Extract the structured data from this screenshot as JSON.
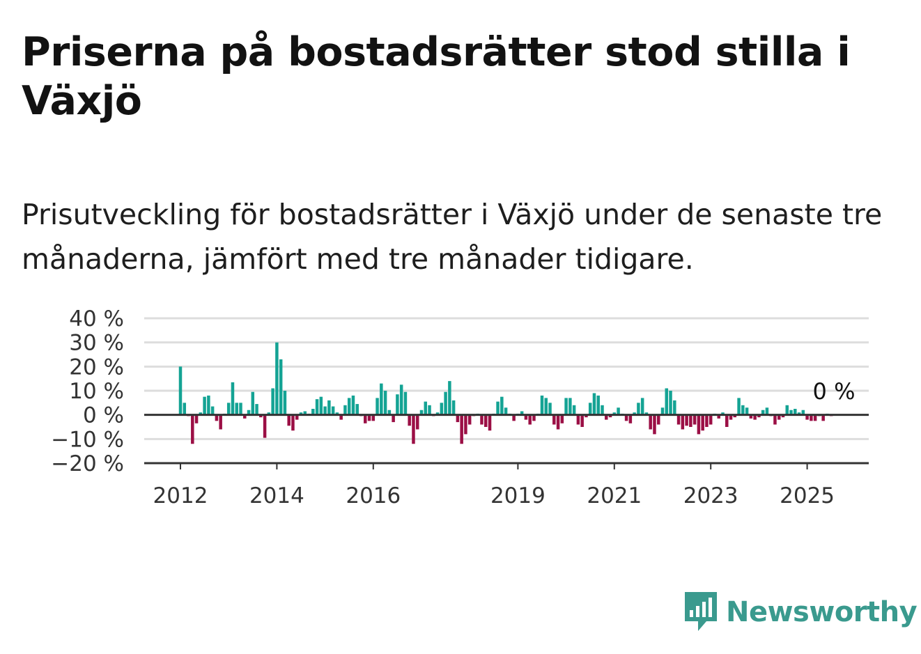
{
  "title": "Priserna på bostadsrätter stod stilla i Växjö",
  "subtitle": "Prisutveckling för bostadsrätter i Växjö under de senaste tre månaderna, jämfört med tre månader tidigare.",
  "brand": {
    "name": "Newsworthy",
    "color": "#3a9a8e",
    "icon": "newsworthy-logo-icon"
  },
  "colors": {
    "positive": "#14a394",
    "negative": "#9b0f45",
    "grid": "#dddddd",
    "axis": "#333333"
  },
  "chart_data": {
    "type": "bar",
    "ylim": [
      -20,
      40
    ],
    "yticks": [
      40,
      30,
      20,
      10,
      0,
      -10,
      -20
    ],
    "ytick_labels": [
      "40 %",
      "30 %",
      "20 %",
      "10 %",
      "0 %",
      "−10 %",
      "−20 %"
    ],
    "xticks": [
      2012,
      2014,
      2016,
      2019,
      2021,
      2023,
      2025
    ],
    "xtick_labels": [
      "2012",
      "2014",
      "2016",
      "2019",
      "2021",
      "2023",
      "2025"
    ],
    "grid": true,
    "unit": "%",
    "annotation": "0 %",
    "start": "2012-01",
    "frequency": "monthly",
    "values": [
      20,
      5,
      -0.5,
      -12,
      -3.5,
      1,
      7.5,
      8,
      3.5,
      -2.5,
      -6,
      0.5,
      5,
      13.5,
      5,
      5,
      -1.5,
      2,
      9.5,
      4.5,
      -1,
      -9.5,
      1,
      11,
      30,
      23,
      10,
      -4.5,
      -6.5,
      -2,
      1,
      1.5,
      0.5,
      2.5,
      6.5,
      7.5,
      3.5,
      6,
      3.5,
      1,
      -2,
      4,
      7,
      8,
      4.5,
      -0.5,
      -3.5,
      -2.5,
      -2.5,
      7,
      13,
      10,
      2,
      -3,
      8.5,
      12.5,
      9.5,
      -4.5,
      -12,
      -6,
      2,
      5.5,
      4,
      -0.5,
      1,
      5,
      9.5,
      14,
      6,
      -3,
      -12,
      -8,
      -4,
      -0.5,
      0.5,
      -4,
      -5,
      -6.5,
      0.5,
      5.5,
      7.5,
      3,
      0.5,
      -2.5,
      0.5,
      1.5,
      -2,
      -4,
      -2.5,
      0.5,
      8,
      7,
      5,
      -4,
      -6,
      -3.5,
      7,
      7,
      4,
      -4,
      -5,
      -1,
      5,
      9,
      8,
      4,
      -2,
      -1,
      1,
      3,
      0.5,
      -2.5,
      -3.5,
      1,
      5,
      7,
      1,
      -6,
      -8,
      -4,
      3,
      11,
      10,
      6,
      -4,
      -6,
      -4.5,
      -5,
      -4,
      -8,
      -6.5,
      -5,
      -4,
      0.5,
      -1.5,
      1,
      -5,
      -2,
      -1,
      7,
      4,
      3,
      -1.5,
      -2,
      -1,
      2,
      3,
      -0.5,
      -4,
      -2,
      -1,
      4,
      2,
      2.5,
      1,
      2,
      -2,
      -2.5,
      -2.5,
      -0.5,
      -2.5,
      0.5,
      -0.5,
      0
    ]
  }
}
